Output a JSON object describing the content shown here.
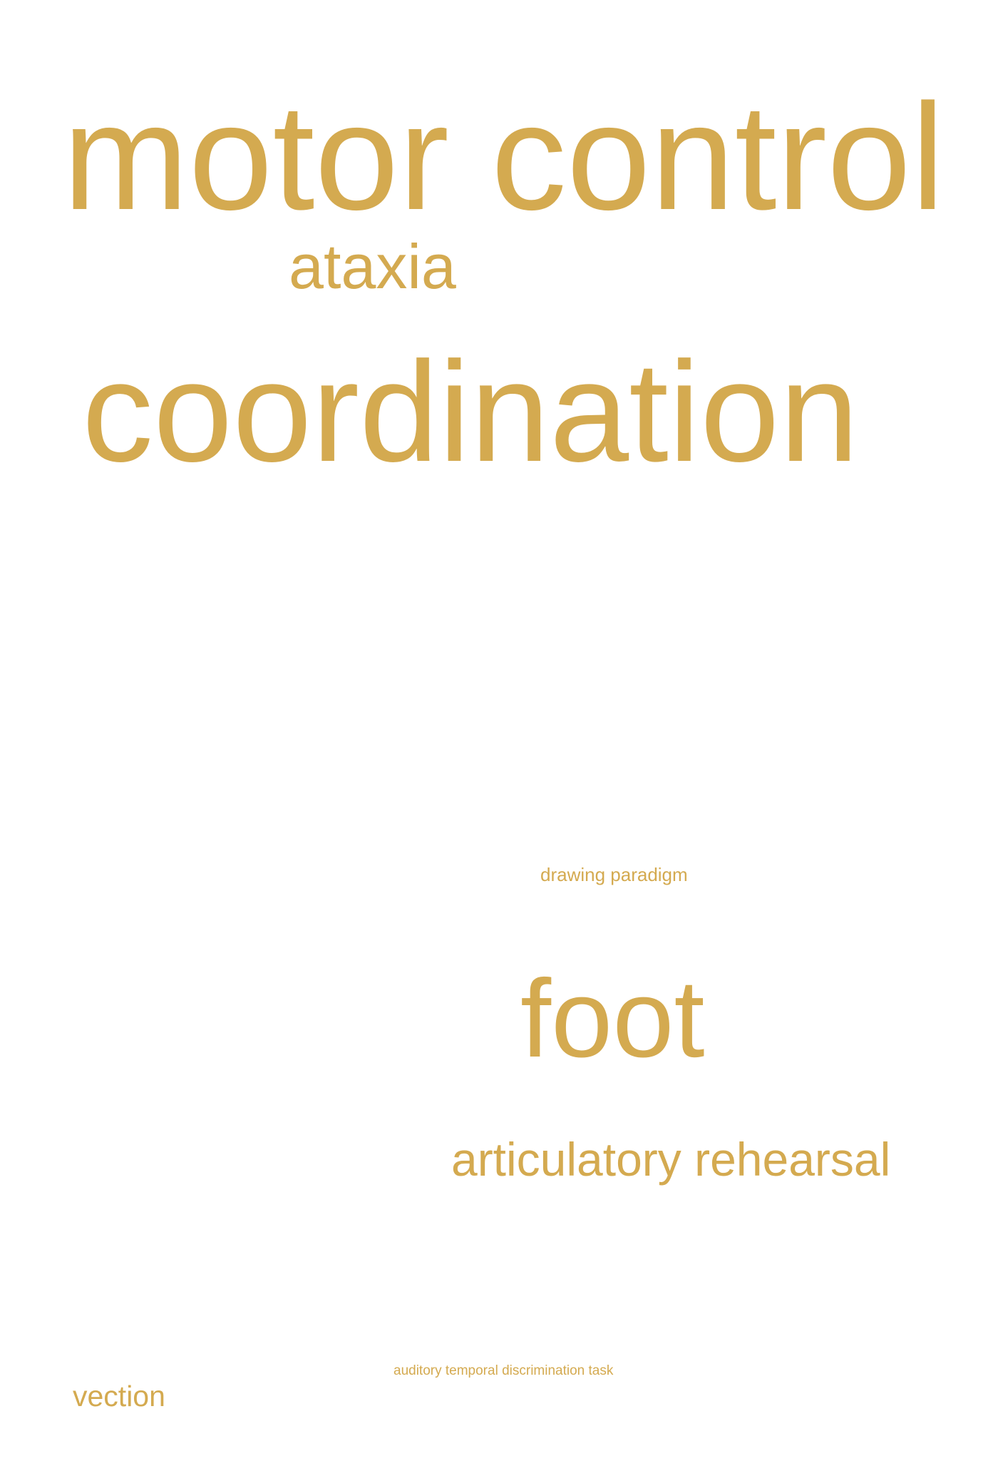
{
  "colors": {
    "background": "#ffffff",
    "word": "#d4aa50"
  },
  "words": {
    "motor_control": "motor control",
    "ataxia": "ataxia",
    "coordination": "coordination",
    "drawing_paradigm": "drawing paradigm",
    "foot": "foot",
    "articulatory_rehearsal": "articulatory rehearsal",
    "auditory_temporal_discrimination_task": "auditory temporal discrimination task",
    "vection": "vection"
  }
}
